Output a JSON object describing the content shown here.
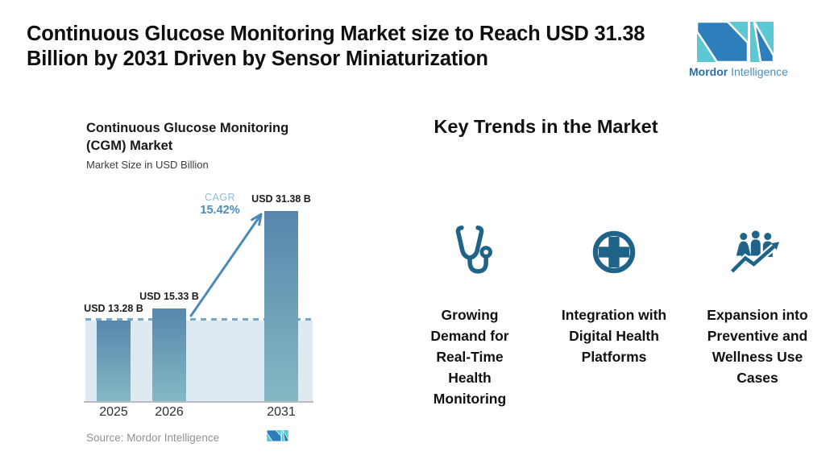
{
  "header": {
    "title": "Continuous Glucose Monitoring Market size to Reach USD 31.38\nBillion by 2031 Driven by Sensor Miniaturization",
    "logo": {
      "brand_bold": "Mordor",
      "brand_regular": "Intelligence",
      "mark_icon": "mordor-intelligence-logo-mark"
    }
  },
  "chart": {
    "title": "Continuous Glucose Monitoring\n(CGM) Market",
    "subtitle": "Market Size in USD Billion",
    "cagr_label": "CAGR",
    "cagr_value": "15.42%",
    "source": "Source: Mordor Intelligence"
  },
  "chart_data": {
    "type": "bar",
    "title": "Continuous Glucose Monitoring (CGM) Market",
    "subtitle": "Market Size in USD Billion",
    "ylabel": "Market Size in USD Billion",
    "categories": [
      "2025",
      "2026",
      "2031"
    ],
    "values": [
      13.28,
      15.33,
      31.38
    ],
    "value_labels": [
      "USD 13.28 B",
      "USD 15.33 B",
      "USD 31.38 B"
    ],
    "annotations": [
      {
        "type": "growth-arrow",
        "text": "CAGR 15.42%",
        "from_category": "2026",
        "to_category": "2031"
      },
      {
        "type": "reference-dashed-line",
        "value": 13.28
      }
    ],
    "grid": false,
    "legend": false,
    "source": "Source: Mordor Intelligence"
  },
  "trends": {
    "heading": "Key Trends in the Market",
    "items": [
      {
        "icon": "stethoscope-icon",
        "label": "Growing\nDemand for\nReal-Time\nHealth\nMonitoring"
      },
      {
        "icon": "medical-cross-icon",
        "label": "Integration with\nDigital Health\nPlatforms"
      },
      {
        "icon": "people-growth-icon",
        "label": "Expansion into\nPreventive and\nWellness Use\nCases"
      }
    ]
  },
  "colors": {
    "accent_teal": "#1f6488",
    "bar_top": "#5886ad",
    "bar_bottom": "#83b9c3",
    "shade": "#dfe9f1",
    "dashed": "#74a9cb",
    "cagr_value": "#4b8cba",
    "arrow": "#4b8ab7",
    "logo_teal": "#5bc8d4",
    "logo_blue": "#2d7fbb"
  }
}
